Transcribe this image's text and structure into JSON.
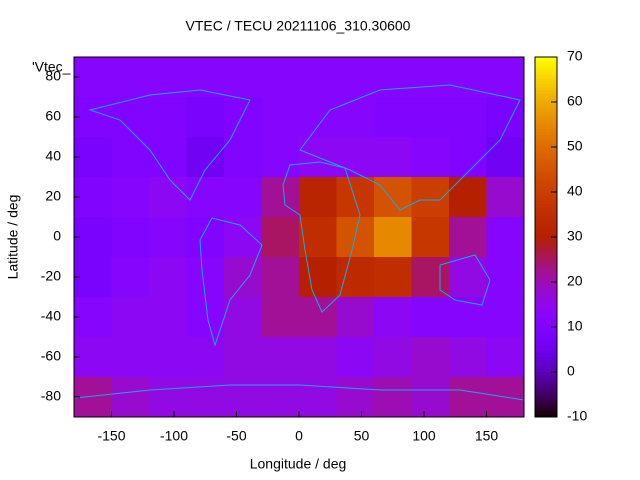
{
  "chart_data": {
    "type": "heatmap",
    "title": "VTEC / TECU 20211106_310.30600",
    "x_label": "Longitude / deg",
    "y_label": "Latitude / deg",
    "key": "'Vtec_",
    "x": [
      -165,
      -135,
      -105,
      -75,
      -45,
      -15,
      15,
      45,
      75,
      105,
      135,
      165
    ],
    "y": [
      80,
      60,
      40,
      20,
      0,
      -20,
      -40,
      -60,
      -80
    ],
    "z": [
      [
        12,
        12,
        12,
        12,
        12,
        12,
        12,
        12,
        12,
        12,
        12,
        12
      ],
      [
        10,
        10,
        10,
        8,
        10,
        12,
        12,
        12,
        10,
        10,
        10,
        8
      ],
      [
        8,
        10,
        10,
        6,
        10,
        12,
        14,
        14,
        14,
        12,
        10,
        6
      ],
      [
        10,
        12,
        14,
        12,
        12,
        22,
        32,
        38,
        45,
        40,
        30,
        18
      ],
      [
        8,
        10,
        12,
        10,
        14,
        25,
        35,
        45,
        55,
        38,
        22,
        12
      ],
      [
        8,
        12,
        14,
        12,
        18,
        22,
        30,
        34,
        35,
        25,
        16,
        12
      ],
      [
        12,
        14,
        14,
        12,
        16,
        22,
        22,
        18,
        14,
        12,
        12,
        12
      ],
      [
        14,
        14,
        14,
        14,
        16,
        16,
        16,
        14,
        16,
        18,
        16,
        14
      ],
      [
        22,
        18,
        16,
        16,
        16,
        16,
        16,
        18,
        20,
        18,
        22,
        22
      ]
    ],
    "colormap": "gnuplot",
    "xlim": [
      -180,
      180
    ],
    "ylim": [
      -90,
      90
    ],
    "zlim": [
      -10,
      70
    ],
    "xticks": [
      -150,
      -100,
      -50,
      0,
      50,
      100,
      150
    ],
    "yticks": [
      -80,
      -60,
      -40,
      -20,
      0,
      20,
      40,
      60,
      80
    ],
    "zticks": [
      -10,
      0,
      10,
      20,
      30,
      40,
      50,
      60,
      70
    ]
  }
}
